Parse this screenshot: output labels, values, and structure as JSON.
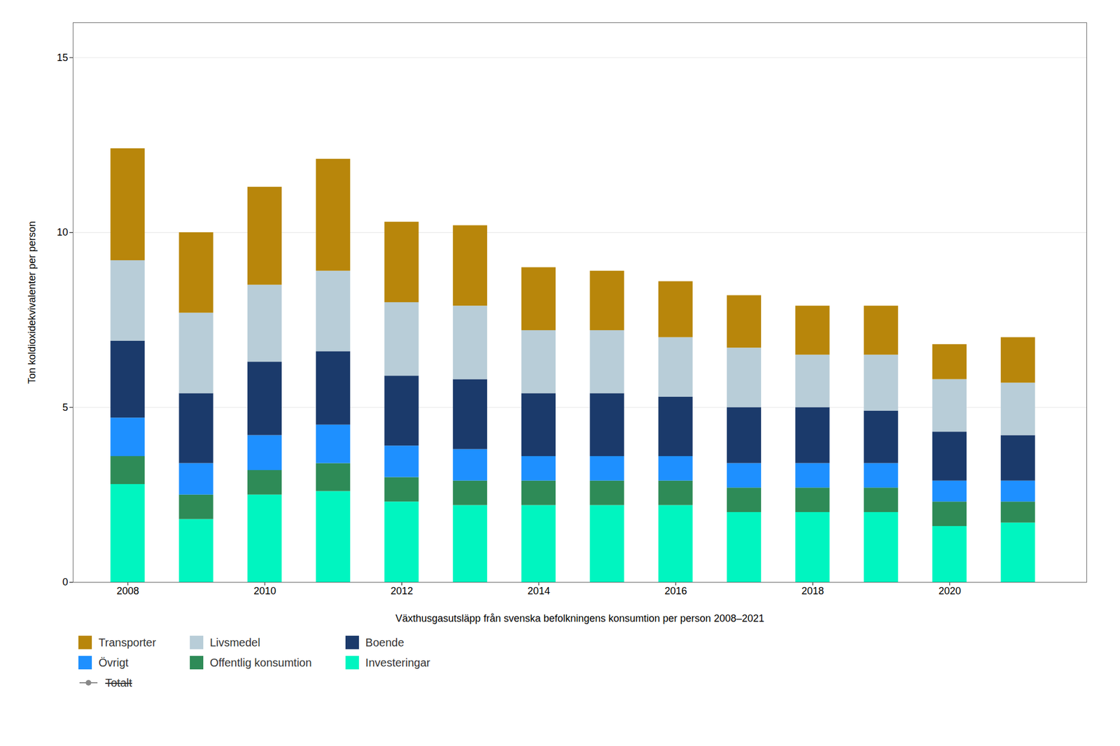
{
  "chart_data": {
    "type": "bar",
    "stacked": true,
    "xlabel": "Växthusgasutsläpp från svenska befolkningens konsumtion per person 2008–2021",
    "ylabel": "Ton koldioxidekvivalenter per person",
    "x": [
      2008,
      2009,
      2010,
      2011,
      2012,
      2013,
      2014,
      2015,
      2016,
      2017,
      2018,
      2019,
      2020,
      2021
    ],
    "series": [
      {
        "name": "Investeringar",
        "color": "#00F5C0",
        "values": [
          2.8,
          1.8,
          2.5,
          2.6,
          2.3,
          2.2,
          2.2,
          2.2,
          2.2,
          2.0,
          2.0,
          2.0,
          1.6,
          1.7
        ]
      },
      {
        "name": "Offentlig konsumtion",
        "color": "#2E8B57",
        "values": [
          0.8,
          0.7,
          0.7,
          0.8,
          0.7,
          0.7,
          0.7,
          0.7,
          0.7,
          0.7,
          0.7,
          0.7,
          0.7,
          0.6
        ]
      },
      {
        "name": "Övrigt",
        "color": "#1E90FF",
        "values": [
          1.1,
          0.9,
          1.0,
          1.1,
          0.9,
          0.9,
          0.7,
          0.7,
          0.7,
          0.7,
          0.7,
          0.7,
          0.6,
          0.6
        ]
      },
      {
        "name": "Boende",
        "color": "#1B3A6B",
        "values": [
          2.2,
          2.0,
          2.1,
          2.1,
          2.0,
          2.0,
          1.8,
          1.8,
          1.7,
          1.6,
          1.6,
          1.5,
          1.4,
          1.3
        ]
      },
      {
        "name": "Livsmedel",
        "color": "#B8CDD8",
        "values": [
          2.3,
          2.3,
          2.2,
          2.3,
          2.1,
          2.1,
          1.8,
          1.8,
          1.7,
          1.7,
          1.5,
          1.6,
          1.5,
          1.5
        ]
      },
      {
        "name": "Transporter",
        "color": "#B8860B",
        "values": [
          3.2,
          2.3,
          2.8,
          3.2,
          2.3,
          2.3,
          1.8,
          1.7,
          1.6,
          1.5,
          1.4,
          1.4,
          1.0,
          1.3
        ]
      },
      {
        "name": "Totalt",
        "type": "line",
        "color": "#888888",
        "marker": "o",
        "line_style": "solid",
        "values": [
          null,
          null,
          null,
          null,
          null,
          null,
          null,
          null,
          null,
          null,
          null,
          null,
          null,
          null
        ]
      }
    ],
    "xlim": [
      2007.2,
      2022.0
    ],
    "xticks": [
      2008,
      2010,
      2012,
      2014,
      2016,
      2018,
      2020
    ],
    "ylim": [
      0,
      16
    ],
    "yticks": [
      0,
      5,
      10,
      15
    ],
    "grid": true,
    "legend": "bottom"
  }
}
